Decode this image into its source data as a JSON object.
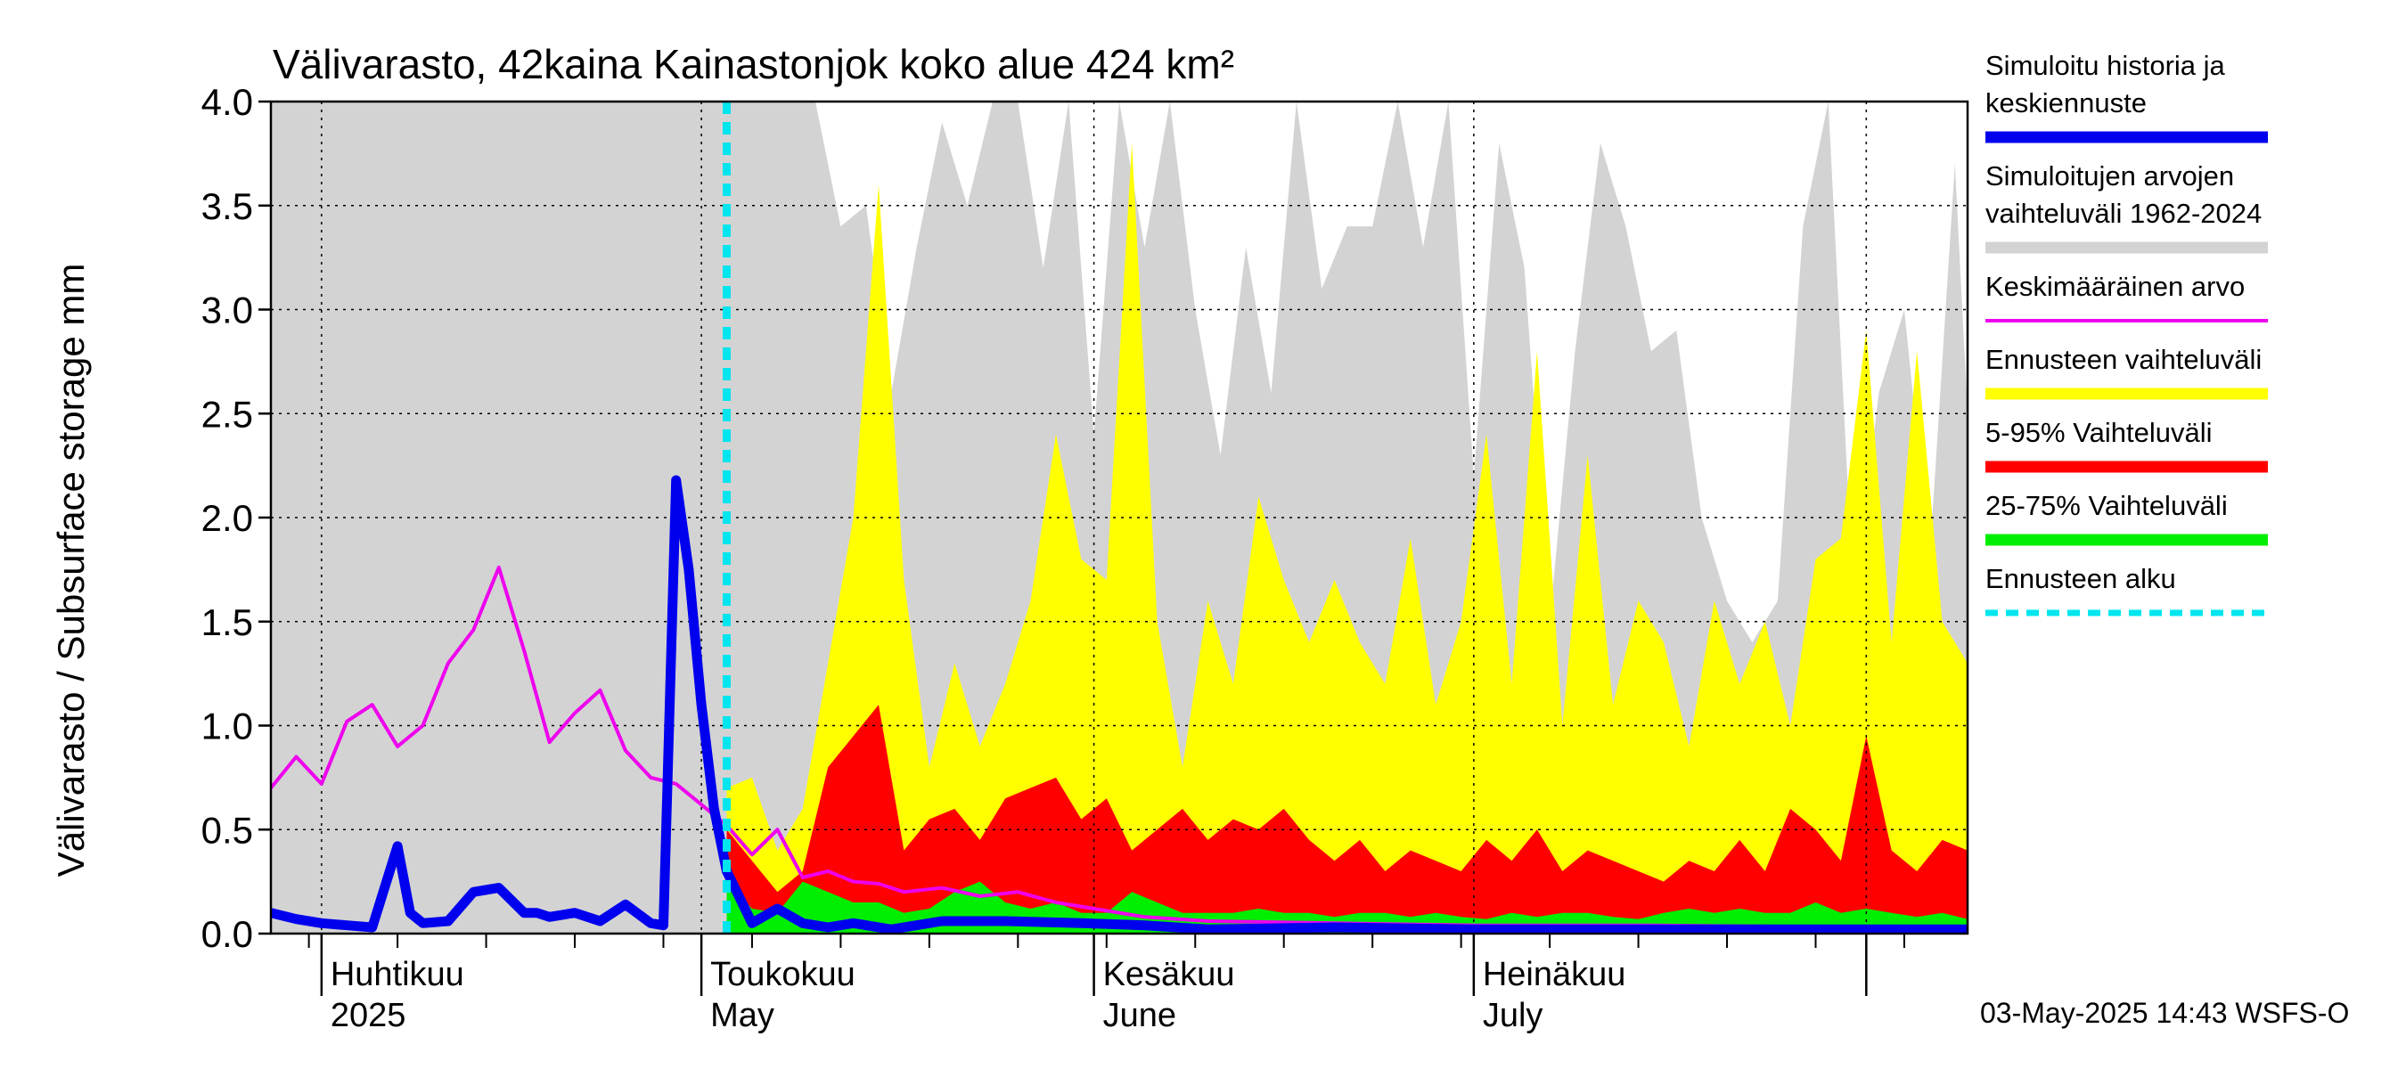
{
  "chart_data": {
    "type": "area",
    "title": "Välivarasto, 42kaina Kainastonjok koko alue 424 km²",
    "ylabel": "Välivarasto / Subsurface storage  mm",
    "ylim": [
      0,
      4
    ],
    "y_ticks": [
      "0.0",
      "0.5",
      "1.0",
      "1.5",
      "2.0",
      "2.5",
      "3.0",
      "3.5",
      "4.0"
    ],
    "x_range": [
      "2025-03-28",
      "2025-08-09"
    ],
    "forecast_start": "2025-05-03",
    "grid": true,
    "legend_position": "right",
    "x_months": [
      {
        "date": "2025-04-01",
        "label_fi": "Huhtikuu",
        "label_en": "2025"
      },
      {
        "date": "2025-05-01",
        "label_fi": "Toukokuu",
        "label_en": "May"
      },
      {
        "date": "2025-06-01",
        "label_fi": "Kesäkuu",
        "label_en": "June"
      },
      {
        "date": "2025-07-01",
        "label_fi": "Heinäkuu",
        "label_en": "July"
      },
      {
        "date": "2025-08-01",
        "label_fi": "",
        "label_en": ""
      }
    ],
    "legend": [
      {
        "label_lines": [
          "Simuloitu historia ja",
          "keskiennuste"
        ],
        "color": "#0000ee",
        "style": "thick"
      },
      {
        "label_lines": [
          "Simuloitujen arvojen",
          "vaihteluväli 1962-2024"
        ],
        "color": "#d3d3d3",
        "style": "thick"
      },
      {
        "label_lines": [
          "Keskimääräinen arvo"
        ],
        "color": "#ee00ee",
        "style": "thin"
      },
      {
        "label_lines": [
          "Ennusteen vaihteluväli"
        ],
        "color": "#ffff00",
        "style": "thick"
      },
      {
        "label_lines": [
          "5-95% Vaihteluväli"
        ],
        "color": "#ff0000",
        "style": "thick"
      },
      {
        "label_lines": [
          "25-75% Vaihteluväli"
        ],
        "color": "#00ee00",
        "style": "thick"
      },
      {
        "label_lines": [
          "Ennusteen alku"
        ],
        "color": "#00e5ee",
        "style": "dashed"
      }
    ],
    "series": [
      {
        "name": "Simuloitujen arvojen vaihteluväli 1962-2024",
        "kind": "band",
        "color": "#d3d3d3",
        "x": [
          "2025-03-28",
          "2025-04-29",
          "2025-05-10",
          "2025-05-12",
          "2025-05-14",
          "2025-05-16",
          "2025-05-18",
          "2025-05-20",
          "2025-05-22",
          "2025-05-24",
          "2025-05-26",
          "2025-05-28",
          "2025-05-30",
          "2025-06-01",
          "2025-06-03",
          "2025-06-05",
          "2025-06-07",
          "2025-06-09",
          "2025-06-11",
          "2025-06-13",
          "2025-06-15",
          "2025-06-17",
          "2025-06-19",
          "2025-06-21",
          "2025-06-23",
          "2025-06-25",
          "2025-06-27",
          "2025-06-29",
          "2025-07-01",
          "2025-07-03",
          "2025-07-05",
          "2025-07-07",
          "2025-07-09",
          "2025-07-11",
          "2025-07-13",
          "2025-07-15",
          "2025-07-17",
          "2025-07-19",
          "2025-07-21",
          "2025-07-23",
          "2025-07-25",
          "2025-07-27",
          "2025-07-29",
          "2025-07-31",
          "2025-08-02",
          "2025-08-04",
          "2025-08-06",
          "2025-08-08",
          "2025-08-09"
        ],
        "low": [
          0,
          0,
          0,
          0,
          0,
          0,
          0,
          0,
          0,
          0,
          0,
          0,
          0,
          0,
          0,
          0,
          0,
          0,
          0,
          0,
          0,
          0,
          0,
          0,
          0,
          0,
          0,
          0,
          0,
          0,
          0,
          0,
          0,
          0,
          0,
          0,
          0,
          0,
          0,
          0,
          0,
          0,
          0,
          0,
          0,
          0,
          0,
          0,
          0
        ],
        "high": [
          4,
          4,
          4,
          3.4,
          3.5,
          2.6,
          3.3,
          3.9,
          3.5,
          4,
          4,
          3.2,
          4,
          2.4,
          4,
          3.3,
          4,
          3.0,
          2.3,
          3.3,
          2.6,
          4,
          3.1,
          3.4,
          3.4,
          4,
          3.3,
          4,
          2.2,
          3.8,
          3.2,
          1.5,
          2.8,
          3.8,
          3.4,
          2.8,
          2.9,
          2.0,
          1.6,
          1.4,
          1.6,
          3.4,
          4,
          1.6,
          2.6,
          3.0,
          1.8,
          3.7,
          2.5
        ]
      },
      {
        "name": "Ennusteen vaihteluväli",
        "kind": "band",
        "color": "#ffff00",
        "x": [
          "2025-05-03",
          "2025-05-05",
          "2025-05-07",
          "2025-05-09",
          "2025-05-11",
          "2025-05-13",
          "2025-05-15",
          "2025-05-17",
          "2025-05-19",
          "2025-05-21",
          "2025-05-23",
          "2025-05-25",
          "2025-05-27",
          "2025-05-29",
          "2025-05-31",
          "2025-06-02",
          "2025-06-04",
          "2025-06-06",
          "2025-06-08",
          "2025-06-10",
          "2025-06-12",
          "2025-06-14",
          "2025-06-16",
          "2025-06-18",
          "2025-06-20",
          "2025-06-22",
          "2025-06-24",
          "2025-06-26",
          "2025-06-28",
          "2025-06-30",
          "2025-07-02",
          "2025-07-04",
          "2025-07-06",
          "2025-07-08",
          "2025-07-10",
          "2025-07-12",
          "2025-07-14",
          "2025-07-16",
          "2025-07-18",
          "2025-07-20",
          "2025-07-22",
          "2025-07-24",
          "2025-07-26",
          "2025-07-28",
          "2025-07-30",
          "2025-08-01",
          "2025-08-03",
          "2025-08-05",
          "2025-08-07",
          "2025-08-09"
        ],
        "low": [
          0,
          0,
          0,
          0,
          0,
          0,
          0,
          0,
          0,
          0,
          0,
          0,
          0,
          0,
          0,
          0,
          0,
          0,
          0,
          0,
          0,
          0,
          0,
          0,
          0,
          0,
          0,
          0,
          0,
          0,
          0,
          0,
          0,
          0,
          0,
          0,
          0,
          0,
          0,
          0,
          0,
          0,
          0,
          0,
          0,
          0,
          0,
          0,
          0,
          0
        ],
        "high": [
          0.7,
          0.75,
          0.4,
          0.6,
          1.3,
          2.0,
          3.6,
          1.7,
          0.8,
          1.3,
          0.9,
          1.2,
          1.6,
          2.4,
          1.8,
          1.7,
          3.8,
          1.5,
          0.8,
          1.6,
          1.2,
          2.1,
          1.7,
          1.4,
          1.7,
          1.4,
          1.2,
          1.9,
          1.1,
          1.5,
          2.4,
          1.2,
          2.8,
          1.0,
          2.3,
          1.1,
          1.6,
          1.4,
          0.9,
          1.6,
          1.2,
          1.5,
          1.0,
          1.8,
          1.9,
          2.9,
          1.4,
          2.8,
          1.5,
          1.3
        ]
      },
      {
        "name": "5-95% Vaihteluväli",
        "kind": "band",
        "color": "#ff0000",
        "x": [
          "2025-05-03",
          "2025-05-05",
          "2025-05-07",
          "2025-05-09",
          "2025-05-11",
          "2025-05-13",
          "2025-05-15",
          "2025-05-17",
          "2025-05-19",
          "2025-05-21",
          "2025-05-23",
          "2025-05-25",
          "2025-05-27",
          "2025-05-29",
          "2025-05-31",
          "2025-06-02",
          "2025-06-04",
          "2025-06-06",
          "2025-06-08",
          "2025-06-10",
          "2025-06-12",
          "2025-06-14",
          "2025-06-16",
          "2025-06-18",
          "2025-06-20",
          "2025-06-22",
          "2025-06-24",
          "2025-06-26",
          "2025-06-28",
          "2025-06-30",
          "2025-07-02",
          "2025-07-04",
          "2025-07-06",
          "2025-07-08",
          "2025-07-10",
          "2025-07-12",
          "2025-07-14",
          "2025-07-16",
          "2025-07-18",
          "2025-07-20",
          "2025-07-22",
          "2025-07-24",
          "2025-07-26",
          "2025-07-28",
          "2025-07-30",
          "2025-08-01",
          "2025-08-03",
          "2025-08-05",
          "2025-08-07",
          "2025-08-09"
        ],
        "low": [
          0,
          0,
          0,
          0,
          0,
          0,
          0,
          0,
          0,
          0,
          0,
          0,
          0,
          0,
          0,
          0,
          0,
          0,
          0,
          0,
          0,
          0,
          0,
          0,
          0,
          0,
          0,
          0,
          0,
          0,
          0,
          0,
          0,
          0,
          0,
          0,
          0,
          0,
          0,
          0,
          0,
          0,
          0,
          0,
          0,
          0,
          0,
          0,
          0,
          0
        ],
        "high": [
          0.5,
          0.35,
          0.2,
          0.3,
          0.8,
          0.95,
          1.1,
          0.4,
          0.55,
          0.6,
          0.45,
          0.65,
          0.7,
          0.75,
          0.55,
          0.65,
          0.4,
          0.5,
          0.6,
          0.45,
          0.55,
          0.5,
          0.6,
          0.45,
          0.35,
          0.45,
          0.3,
          0.4,
          0.35,
          0.3,
          0.45,
          0.35,
          0.5,
          0.3,
          0.4,
          0.35,
          0.3,
          0.25,
          0.35,
          0.3,
          0.45,
          0.3,
          0.6,
          0.5,
          0.35,
          0.95,
          0.4,
          0.3,
          0.45,
          0.4
        ]
      },
      {
        "name": "25-75% Vaihteluväli",
        "kind": "band",
        "color": "#00ee00",
        "x": [
          "2025-05-03",
          "2025-05-05",
          "2025-05-07",
          "2025-05-09",
          "2025-05-11",
          "2025-05-13",
          "2025-05-15",
          "2025-05-17",
          "2025-05-19",
          "2025-05-21",
          "2025-05-23",
          "2025-05-25",
          "2025-05-27",
          "2025-05-29",
          "2025-05-31",
          "2025-06-02",
          "2025-06-04",
          "2025-06-06",
          "2025-06-08",
          "2025-06-10",
          "2025-06-12",
          "2025-06-14",
          "2025-06-16",
          "2025-06-18",
          "2025-06-20",
          "2025-06-22",
          "2025-06-24",
          "2025-06-26",
          "2025-06-28",
          "2025-06-30",
          "2025-07-02",
          "2025-07-04",
          "2025-07-06",
          "2025-07-08",
          "2025-07-10",
          "2025-07-12",
          "2025-07-14",
          "2025-07-16",
          "2025-07-18",
          "2025-07-20",
          "2025-07-22",
          "2025-07-24",
          "2025-07-26",
          "2025-07-28",
          "2025-07-30",
          "2025-08-01",
          "2025-08-03",
          "2025-08-05",
          "2025-08-07",
          "2025-08-09"
        ],
        "low": [
          0,
          0,
          0,
          0,
          0,
          0,
          0,
          0,
          0,
          0,
          0,
          0,
          0,
          0,
          0,
          0,
          0,
          0,
          0,
          0,
          0,
          0,
          0,
          0,
          0,
          0,
          0,
          0,
          0,
          0,
          0,
          0,
          0,
          0,
          0,
          0,
          0,
          0,
          0,
          0,
          0,
          0,
          0,
          0,
          0,
          0,
          0,
          0,
          0,
          0
        ],
        "high": [
          0.25,
          0.12,
          0.1,
          0.25,
          0.2,
          0.15,
          0.15,
          0.1,
          0.12,
          0.2,
          0.25,
          0.15,
          0.12,
          0.15,
          0.1,
          0.1,
          0.2,
          0.15,
          0.1,
          0.1,
          0.1,
          0.12,
          0.1,
          0.1,
          0.08,
          0.1,
          0.1,
          0.08,
          0.1,
          0.08,
          0.07,
          0.1,
          0.08,
          0.1,
          0.1,
          0.08,
          0.07,
          0.1,
          0.12,
          0.1,
          0.12,
          0.1,
          0.1,
          0.15,
          0.1,
          0.12,
          0.1,
          0.08,
          0.1,
          0.07
        ]
      },
      {
        "name": "Keskimääräinen arvo",
        "kind": "line",
        "color": "#ee00ee",
        "x": [
          "2025-03-28",
          "2025-03-30",
          "2025-04-01",
          "2025-04-03",
          "2025-04-05",
          "2025-04-07",
          "2025-04-09",
          "2025-04-11",
          "2025-04-13",
          "2025-04-15",
          "2025-04-17",
          "2025-04-19",
          "2025-04-21",
          "2025-04-23",
          "2025-04-25",
          "2025-04-27",
          "2025-04-29",
          "2025-05-01",
          "2025-05-03",
          "2025-05-05",
          "2025-05-07",
          "2025-05-09",
          "2025-05-11",
          "2025-05-13",
          "2025-05-15",
          "2025-05-17",
          "2025-05-20",
          "2025-05-23",
          "2025-05-26",
          "2025-05-29",
          "2025-06-01",
          "2025-06-05",
          "2025-06-10",
          "2025-06-20",
          "2025-07-01",
          "2025-07-15",
          "2025-08-01",
          "2025-08-09"
        ],
        "y": [
          0.7,
          0.85,
          0.72,
          1.02,
          1.1,
          0.9,
          1.0,
          1.3,
          1.46,
          1.76,
          1.36,
          0.92,
          1.06,
          1.17,
          0.88,
          0.75,
          0.72,
          0.62,
          0.52,
          0.38,
          0.5,
          0.27,
          0.3,
          0.25,
          0.24,
          0.2,
          0.22,
          0.18,
          0.2,
          0.15,
          0.12,
          0.08,
          0.06,
          0.05,
          0.04,
          0.04,
          0.03,
          0.03
        ]
      },
      {
        "name": "Simuloitu historia ja keskiennuste",
        "kind": "line",
        "color": "#0000ee",
        "x": [
          "2025-03-28",
          "2025-03-30",
          "2025-04-01",
          "2025-04-03",
          "2025-04-05",
          "2025-04-07",
          "2025-04-08",
          "2025-04-09",
          "2025-04-11",
          "2025-04-13",
          "2025-04-15",
          "2025-04-17",
          "2025-04-18",
          "2025-04-19",
          "2025-04-21",
          "2025-04-23",
          "2025-04-25",
          "2025-04-27",
          "2025-04-28",
          "2025-04-29",
          "2025-04-30",
          "2025-05-01",
          "2025-05-02",
          "2025-05-03",
          "2025-05-05",
          "2025-05-07",
          "2025-05-09",
          "2025-05-11",
          "2025-05-13",
          "2025-05-16",
          "2025-05-20",
          "2025-05-25",
          "2025-05-31",
          "2025-06-05",
          "2025-06-10",
          "2025-06-20",
          "2025-07-01",
          "2025-07-15",
          "2025-08-01",
          "2025-08-09"
        ],
        "y": [
          0.1,
          0.07,
          0.05,
          0.04,
          0.03,
          0.42,
          0.1,
          0.05,
          0.06,
          0.2,
          0.22,
          0.1,
          0.1,
          0.08,
          0.1,
          0.06,
          0.14,
          0.05,
          0.04,
          2.18,
          1.75,
          1.1,
          0.6,
          0.3,
          0.05,
          0.12,
          0.05,
          0.03,
          0.05,
          0.02,
          0.06,
          0.06,
          0.05,
          0.04,
          0.02,
          0.03,
          0.02,
          0.02,
          0.02,
          0.02
        ]
      }
    ]
  },
  "footer": {
    "timestamp": "03-May-2025 14:43 WSFS-O"
  },
  "colors": {
    "plot_bg": "#d3d3d3",
    "grid": "#000000",
    "text": "#000000"
  }
}
